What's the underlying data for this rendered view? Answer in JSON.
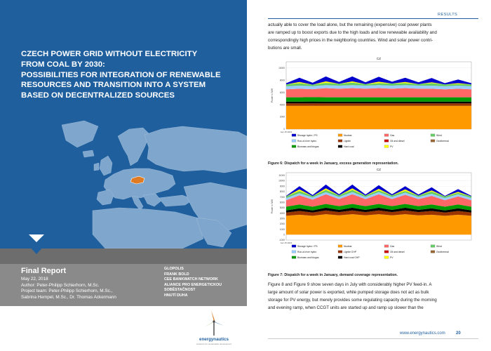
{
  "cover": {
    "title_lines": [
      "CZECH POWER GRID WITHOUT ELECTRICITY",
      "FROM COAL BY 2030:",
      "POSSIBILITIES FOR INTEGRATION OF RENEWABLE",
      "RESOURCES AND TRANSITION INTO A SYSTEM",
      "BASED ON DECENTRALIZED SOURCES"
    ],
    "report_title": "Final Report",
    "date": "May 22, 2018",
    "author": "Author: Peter-Philipp Schierhorn, M.Sc.",
    "team_line1": "Project team: Peter-Philipp Schierhorn, M.Sc.,",
    "team_line2": "Sabrina Hempel, M.Sc., Dr. Thomas Ackermann",
    "partners": [
      "GLOPOLIS",
      "FRANK BOLD",
      "CEE BANKWATCH NETWORK",
      "ALIANCE PRO ENERGETICKOU",
      "SOBĚSTAČNOST",
      "HNUTÍ DUHA"
    ],
    "logo_text": "energynautics",
    "logo_subtext": "solutions for sustainable development",
    "colors": {
      "blue": "#1f5f9e",
      "grey_dark": "#6d6d6d",
      "grey": "#8a8a8a",
      "highlight_country": "#e07b24"
    }
  },
  "page": {
    "section_label": "RESULTS",
    "para1_lines": [
      "actually able to cover the load alone, but the remaining (expensive) coal power plants",
      "are ramped up to boost exports due to the high loads and low renewable availability and",
      "correspondingly high prices in the neighboring countries. Wind and solar power contri-",
      "butions are small."
    ],
    "caption1": "Figure 6: Dispatch for a week in January, excess generation representation.",
    "caption2": "Figure 7: Dispatch for a week in January, demand coverage representation.",
    "para2_lines": [
      "Figure 8 and Figure 9 show seven days in July with considerably higher PV feed-in. A",
      "large amount of solar power is exported, while pumped storage does not act as bulk",
      "storage for PV energy, but merely provides some regulating capacity during the morning",
      "and evening ramp, when CCGT units are started up and ramp up slower than the"
    ],
    "footer_url": "www.energynautics.com",
    "page_number": "20"
  },
  "chart_data": [
    {
      "type": "area",
      "title": "CZ",
      "ylabel": "Power in MW",
      "xlabel": "",
      "yticks": [
        "0",
        "2000",
        "4000",
        "6000",
        "8000",
        "10000"
      ],
      "xtick_first": "Jan 15 2016",
      "ylim": [
        0,
        11000
      ],
      "legend_position": "bottom",
      "legend": [
        {
          "name": "Storage hydro / PS",
          "color": "#0000cc"
        },
        {
          "name": "Nuclear",
          "color": "#ff9900"
        },
        {
          "name": "Gas",
          "color": "#ff6666"
        },
        {
          "name": "Wind",
          "color": "#66cc66"
        },
        {
          "name": "Run-of-river hydro",
          "color": "#99ccff"
        },
        {
          "name": "Lignite",
          "color": "#993300"
        },
        {
          "name": "Oil and diesel",
          "color": "#cc0000"
        },
        {
          "name": "Geothermal",
          "color": "#996633"
        },
        {
          "name": "Biomass and biogas",
          "color": "#009900"
        },
        {
          "name": "Hard coal",
          "color": "#000000"
        },
        {
          "name": "PV",
          "color": "#ffff00"
        }
      ],
      "series": [
        {
          "name": "Nuclear",
          "values": [
            3800,
            3800,
            3800,
            3800,
            3800,
            3800,
            3800,
            3800,
            3800,
            3800,
            3800,
            3800,
            3800,
            3800,
            3800
          ]
        },
        {
          "name": "Lignite",
          "values": [
            400,
            400,
            420,
            400,
            400,
            400,
            400,
            400,
            400,
            400,
            400,
            400,
            400,
            400,
            400
          ]
        },
        {
          "name": "Hard coal",
          "values": [
            300,
            300,
            300,
            300,
            300,
            300,
            300,
            300,
            300,
            300,
            300,
            300,
            300,
            300,
            300
          ]
        },
        {
          "name": "Biomass and biogas",
          "values": [
            700,
            700,
            700,
            700,
            700,
            700,
            700,
            700,
            700,
            700,
            700,
            700,
            700,
            700,
            700
          ]
        },
        {
          "name": "Gas",
          "values": [
            1300,
            1400,
            1300,
            1500,
            1400,
            1500,
            1400,
            1500,
            1400,
            1500,
            1400,
            1400,
            1300,
            1400,
            1300
          ]
        },
        {
          "name": "Run-of-river hydro",
          "values": [
            500,
            500,
            500,
            500,
            500,
            500,
            500,
            500,
            500,
            500,
            500,
            500,
            500,
            500,
            500
          ]
        },
        {
          "name": "Wind",
          "values": [
            300,
            400,
            250,
            350,
            300,
            400,
            250,
            300,
            350,
            300,
            250,
            400,
            300,
            250,
            300
          ]
        },
        {
          "name": "PV",
          "values": [
            0,
            200,
            0,
            250,
            0,
            200,
            0,
            250,
            0,
            200,
            0,
            150,
            0,
            150,
            0
          ]
        },
        {
          "name": "Storage hydro / PS",
          "values": [
            200,
            700,
            300,
            800,
            300,
            800,
            300,
            800,
            300,
            700,
            300,
            700,
            200,
            600,
            200
          ]
        }
      ]
    },
    {
      "type": "area",
      "title": "CZ",
      "ylabel": "Power in MW",
      "xlabel": "",
      "yticks": [
        "-1000",
        "0",
        "1000",
        "2000",
        "3000",
        "4000",
        "5000",
        "6000",
        "7000",
        "8000",
        "9000",
        "10000",
        "11000"
      ],
      "xtick_first": "Jan 15 2016",
      "ylim": [
        -1000,
        11500
      ],
      "legend_position": "bottom",
      "legend": [
        {
          "name": "Storage hydro / PS",
          "color": "#0000cc"
        },
        {
          "name": "Nuclear",
          "color": "#ff9900"
        },
        {
          "name": "Gas",
          "color": "#ff6666"
        },
        {
          "name": "Wind",
          "color": "#66cc66"
        },
        {
          "name": "Run-of-river hydro",
          "color": "#99ccff"
        },
        {
          "name": "Lignite CHP",
          "color": "#993300"
        },
        {
          "name": "Oil and diesel",
          "color": "#cc0000"
        },
        {
          "name": "Geothermal",
          "color": "#996633"
        },
        {
          "name": "Biomass and biogas",
          "color": "#009900"
        },
        {
          "name": "Hard coal CHP",
          "color": "#000000"
        },
        {
          "name": "PV",
          "color": "#ffff00"
        }
      ],
      "series": [
        {
          "name": "Nuclear",
          "values": [
            3500,
            3700,
            3500,
            3800,
            3600,
            3800,
            3600,
            3800,
            3600,
            3800,
            3600,
            3700,
            3500,
            3700,
            3500
          ]
        },
        {
          "name": "Lignite CHP",
          "values": [
            600,
            700,
            600,
            700,
            600,
            700,
            600,
            700,
            600,
            700,
            600,
            700,
            600,
            700,
            600
          ]
        },
        {
          "name": "Hard coal CHP",
          "values": [
            400,
            500,
            400,
            500,
            400,
            500,
            400,
            500,
            400,
            500,
            400,
            500,
            400,
            500,
            400
          ]
        },
        {
          "name": "Biomass and biogas",
          "values": [
            700,
            700,
            700,
            700,
            700,
            700,
            700,
            700,
            700,
            700,
            700,
            700,
            700,
            700,
            700
          ]
        },
        {
          "name": "Gas",
          "values": [
            1200,
            1700,
            1300,
            1800,
            1300,
            1800,
            1300,
            1800,
            1300,
            1700,
            1300,
            1600,
            1200,
            1500,
            1200
          ]
        },
        {
          "name": "Run-of-river hydro",
          "values": [
            400,
            400,
            400,
            400,
            400,
            400,
            400,
            400,
            400,
            400,
            400,
            400,
            400,
            400,
            400
          ]
        },
        {
          "name": "Wind",
          "values": [
            300,
            400,
            250,
            400,
            300,
            400,
            250,
            300,
            300,
            300,
            250,
            400,
            300,
            250,
            300
          ]
        },
        {
          "name": "PV",
          "values": [
            0,
            300,
            0,
            300,
            0,
            300,
            0,
            300,
            0,
            300,
            0,
            200,
            0,
            200,
            0
          ]
        },
        {
          "name": "Storage hydro / PS",
          "values": [
            100,
            600,
            200,
            700,
            200,
            700,
            200,
            700,
            200,
            600,
            200,
            600,
            100,
            500,
            100
          ]
        }
      ]
    }
  ]
}
